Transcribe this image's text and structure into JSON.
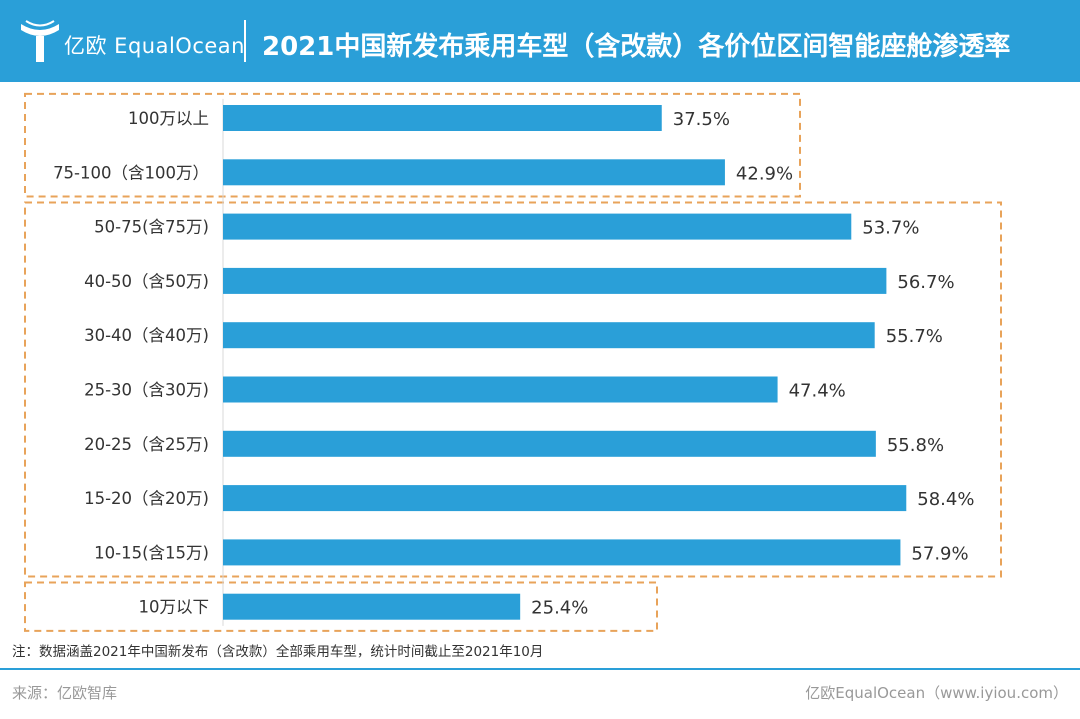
{
  "header": {
    "brand": "亿欧 EqualOcean",
    "title": "2021中国新发布乘用车型（含改款）各价位区间智能座舱渗透率"
  },
  "colors": {
    "header_bg": "#2a9fd8",
    "bar": "#2a9fd8",
    "group_box": "#e8a35a"
  },
  "chart_data": {
    "type": "bar",
    "orientation": "horizontal",
    "categories": [
      "100万以上",
      "75-100（含100万）",
      "50-75(含75万)",
      "40-50（含50万)",
      "30-40（含40万)",
      "25-30（含30万)",
      "20-25（含25万)",
      "15-20（含20万)",
      "10-15(含15万)",
      "10万以下"
    ],
    "values": [
      37.5,
      42.9,
      53.7,
      56.7,
      55.7,
      47.4,
      55.8,
      58.4,
      57.9,
      25.4
    ],
    "value_labels": [
      "37.5%",
      "42.9%",
      "53.7%",
      "56.7%",
      "55.7%",
      "47.4%",
      "55.8%",
      "58.4%",
      "57.9%",
      "25.4%"
    ],
    "xlim": [
      0,
      60
    ],
    "grid": false,
    "legend": "none",
    "groups": [
      {
        "categories": [
          "100万以上",
          "75-100（含100万）"
        ]
      },
      {
        "categories": [
          "50-75(含75万)",
          "40-50（含50万)",
          "30-40（含40万)",
          "25-30（含30万)",
          "20-25（含25万)",
          "15-20（含20万)",
          "10-15(含15万)"
        ]
      },
      {
        "categories": [
          "10万以下"
        ]
      }
    ]
  },
  "footer": {
    "note": "注：数据涵盖2021年中国新发布（含改款）全部乘用车型，统计时间截止至2021年10月",
    "source": "来源：亿欧智库",
    "credit": "亿欧EqualOcean（www.iyiou.com）"
  }
}
